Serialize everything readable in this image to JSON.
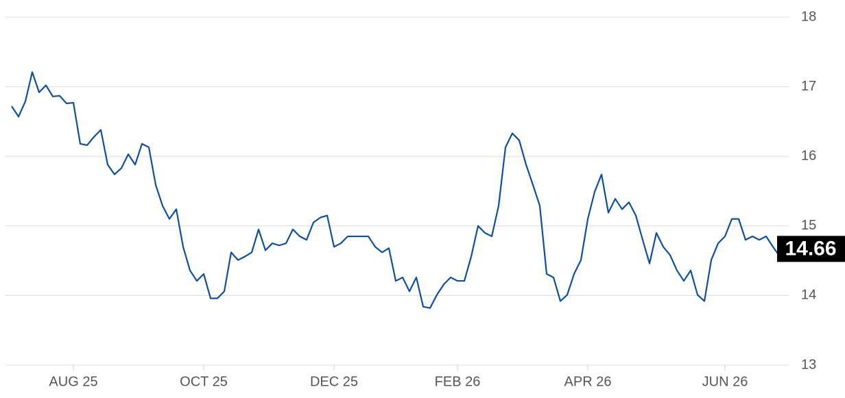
{
  "chart_data": {
    "type": "line",
    "categories": [
      null,
      null,
      null,
      null,
      null,
      null,
      null,
      null,
      null,
      "AUG 25",
      null,
      null,
      null,
      null,
      null,
      null,
      null,
      null,
      null,
      null,
      null,
      null,
      null,
      null,
      null,
      null,
      null,
      null,
      "OCT 25",
      null,
      null,
      null,
      null,
      null,
      null,
      null,
      null,
      null,
      null,
      null,
      null,
      null,
      null,
      null,
      null,
      null,
      null,
      "DEC 25",
      null,
      null,
      null,
      null,
      null,
      null,
      null,
      null,
      null,
      null,
      null,
      null,
      null,
      null,
      null,
      null,
      null,
      "FEB 26",
      null,
      null,
      null,
      null,
      null,
      null,
      null,
      null,
      null,
      null,
      null,
      null,
      null,
      null,
      null,
      null,
      null,
      null,
      "APR 26",
      null,
      null,
      null,
      null,
      null,
      null,
      null,
      null,
      null,
      null,
      null,
      null,
      null,
      null,
      null,
      null,
      null,
      null,
      null,
      "JUN 26",
      null,
      null,
      null,
      null,
      null,
      null,
      null,
      null,
      null
    ],
    "series": [
      {
        "color": "#0d4f9e",
        "values": [
          16.72,
          16.57,
          16.79,
          17.21,
          16.92,
          17.02,
          16.86,
          16.87,
          16.76,
          16.77,
          16.18,
          16.16,
          16.28,
          16.38,
          15.88,
          15.74,
          15.83,
          16.03,
          15.88,
          16.18,
          16.13,
          15.59,
          15.29,
          15.1,
          15.24,
          14.7,
          14.36,
          14.21,
          14.31,
          13.96,
          13.96,
          14.06,
          14.62,
          14.51,
          14.56,
          14.62,
          14.95,
          14.65,
          14.75,
          14.72,
          14.75,
          14.95,
          14.85,
          14.8,
          15.05,
          15.12,
          15.15,
          14.7,
          14.75,
          14.85,
          14.85,
          14.85,
          14.85,
          14.7,
          14.62,
          14.68,
          14.21,
          14.26,
          14.06,
          14.26,
          13.84,
          13.82,
          14.01,
          14.16,
          14.26,
          14.21,
          14.21,
          14.56,
          15.0,
          14.9,
          14.85,
          15.29,
          16.13,
          16.33,
          16.23,
          15.88,
          15.59,
          15.29,
          14.31,
          14.26,
          13.92,
          14.01,
          14.31,
          14.51,
          15.1,
          15.49,
          15.74,
          15.19,
          15.39,
          15.24,
          15.34,
          15.15,
          14.8,
          14.46,
          14.9,
          14.7,
          14.58,
          14.36,
          14.21,
          14.36,
          14.01,
          13.92,
          14.51,
          14.75,
          14.85,
          15.1,
          15.1,
          14.8,
          14.85,
          14.8,
          14.85,
          14.7,
          14.56,
          14.66
        ]
      }
    ],
    "last_value_label": "14.66",
    "ylim": [
      13,
      18
    ],
    "yticks": [
      13,
      14,
      15,
      16,
      17,
      18
    ],
    "grid": true
  }
}
